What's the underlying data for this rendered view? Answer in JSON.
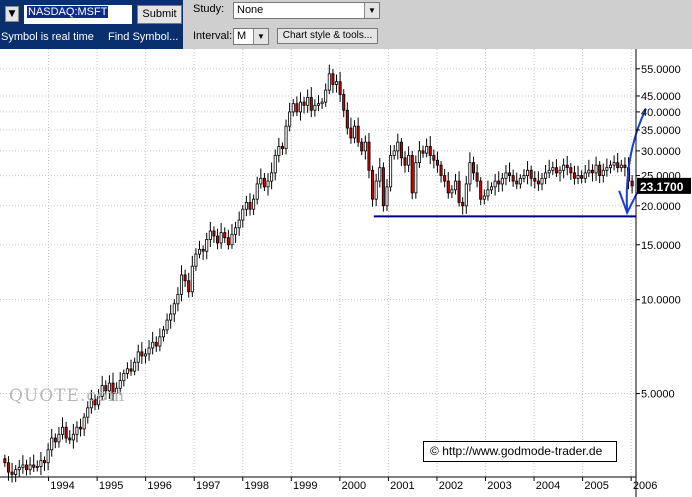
{
  "toolbar": {
    "menu_glyph": "▼",
    "symbol_value": "NASDAQ:MSFT",
    "submit_label": "Submit",
    "realtime_text": "Symbol is real time",
    "find_symbol_label": "Find Symbol...",
    "study_label": "Study:",
    "study_value": "None",
    "interval_label": "Interval:",
    "interval_value": "M",
    "chart_style_label": "Chart style & tools..."
  },
  "watermark": "QUOTE.com",
  "copyright": "http://www.godmode-trader.de",
  "copyright_icon": "copyright-icon",
  "colors": {
    "sym_panel": "#0a2f6e",
    "toolbar": "#cfcfcf",
    "down_candle": "#cc0000",
    "support_line": "#000080",
    "arrow": "#1a3fd0"
  },
  "chart_data": {
    "type": "candlestick",
    "interval": "monthly",
    "y_scale": "log",
    "ylim": [
      2.7,
      60
    ],
    "y_ticks": [
      5,
      10,
      15,
      20,
      25,
      30,
      35,
      40,
      45,
      55
    ],
    "y_tick_labels": [
      "5.0000",
      "10.0000",
      "15.0000",
      "20.0000",
      "25.0000",
      "30.0000",
      "35.0000",
      "40.0000",
      "45.0000",
      "55.0000"
    ],
    "x_range": [
      1993.0,
      2006.1
    ],
    "x_ticks": [
      1994,
      1995,
      1996,
      1997,
      1998,
      1999,
      2000,
      2001,
      2002,
      2003,
      2004,
      2005,
      2006
    ],
    "x_tick_labels": [
      "1994",
      "1995",
      "1996",
      "1997",
      "1998",
      "1999",
      "2000",
      "2001",
      "2002",
      "2003",
      "2004",
      "2005",
      "2006"
    ],
    "last_price_label": "23.1700",
    "last_price": 23.17,
    "support_level": 18.5,
    "support_range": [
      2000.7,
      2006.1
    ],
    "arrow_from": [
      2006.1,
      41
    ],
    "arrow_to": [
      2006.0,
      19
    ],
    "closes": [
      3.0,
      2.8,
      2.75,
      2.85,
      2.9,
      2.95,
      2.85,
      2.95,
      2.9,
      2.92,
      3.05,
      3.0,
      3.3,
      3.6,
      3.5,
      3.7,
      3.9,
      3.6,
      3.55,
      3.7,
      3.9,
      3.85,
      4.2,
      4.5,
      4.8,
      4.6,
      4.9,
      5.3,
      5.1,
      5.4,
      5.0,
      5.2,
      5.5,
      5.8,
      6.0,
      5.9,
      6.3,
      6.8,
      6.6,
      6.7,
      7.0,
      7.3,
      7.1,
      7.6,
      8.0,
      8.6,
      9.0,
      9.7,
      10.4,
      12.0,
      11.5,
      10.6,
      12.8,
      14.0,
      14.5,
      14.3,
      15.6,
      16.6,
      16.0,
      15.2,
      16.4,
      15.8,
      15.0,
      16.2,
      17.0,
      18.0,
      19.5,
      20.5,
      19.5,
      21.0,
      23.5,
      24.5,
      23.0,
      24.0,
      25.5,
      29.0,
      31.0,
      30.5,
      36.0,
      40.0,
      42.5,
      40.0,
      43.0,
      42.0,
      44.5,
      40.5,
      42.0,
      42.5,
      43.0,
      47.0,
      53.0,
      49.0,
      50.0,
      45.5,
      40.5,
      35.5,
      33.0,
      36.0,
      32.0,
      30.0,
      32.0,
      26.0,
      21.0,
      24.0,
      26.5,
      20.0,
      23.0,
      29.0,
      30.0,
      32.0,
      28.5,
      27.0,
      29.0,
      22.0,
      27.5,
      30.0,
      29.5,
      31.0,
      29.0,
      28.0,
      27.0,
      25.0,
      24.0,
      22.0,
      22.5,
      24.0,
      20.5,
      20.0,
      23.5,
      27.5,
      25.5,
      24.0,
      21.0,
      21.5,
      22.5,
      23.0,
      24.0,
      23.5,
      24.5,
      25.5,
      25.0,
      24.0,
      23.5,
      24.5,
      25.0,
      26.0,
      24.5,
      24.0,
      23.5,
      24.5,
      25.5,
      26.0,
      26.5,
      25.5,
      26.0,
      27.0,
      26.5,
      25.5,
      24.5,
      25.0,
      24.5,
      25.5,
      26.0,
      25.5,
      27.0,
      25.0,
      26.0,
      26.5,
      27.0,
      27.5,
      26.5,
      27.0,
      26.5,
      24.0,
      23.17
    ]
  }
}
